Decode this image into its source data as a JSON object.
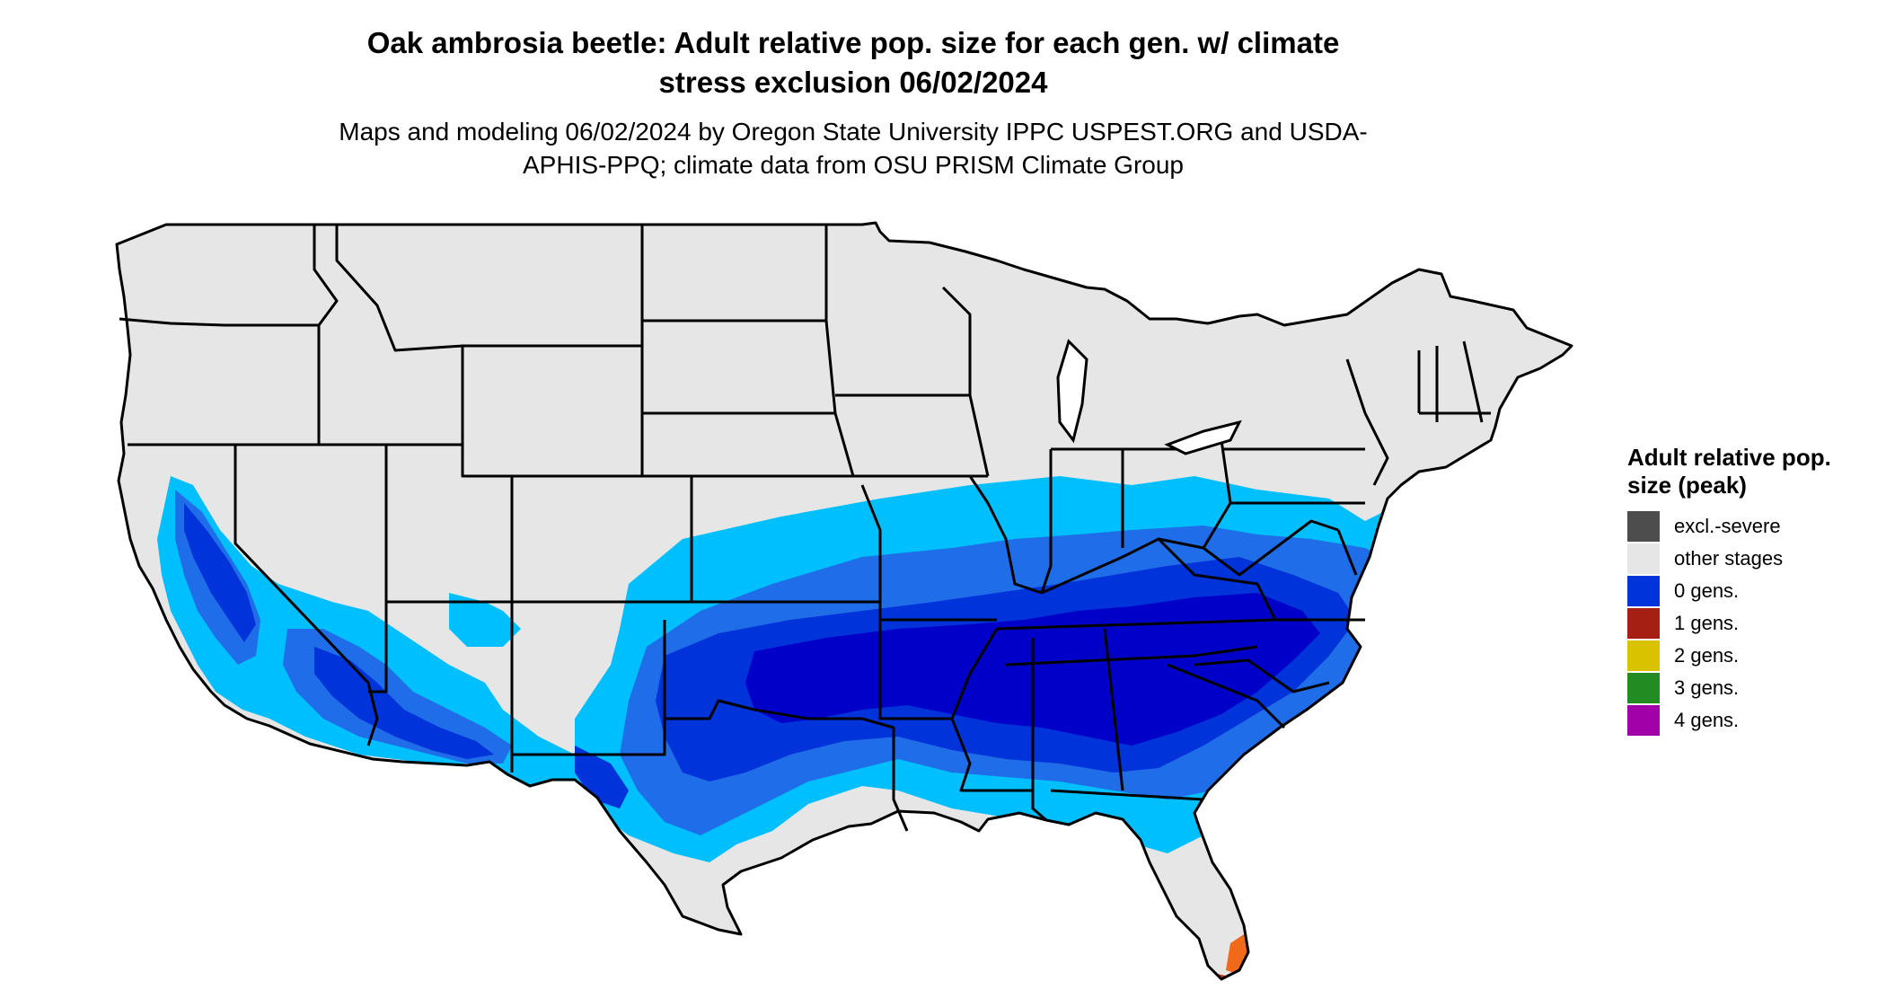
{
  "title": "Oak ambrosia beetle: Adult relative pop. size for each gen. w/ climate stress exclusion 06/02/2024",
  "subtitle": "Maps and modeling 06/02/2024 by Oregon State University IPPC USPEST.ORG and USDA-APHIS-PPQ; climate data from OSU PRISM Climate Group",
  "legend": {
    "title": "Adult relative pop. size (peak)",
    "items": [
      {
        "label": "excl.-severe",
        "color": "#4d4d4d"
      },
      {
        "label": "other stages",
        "color": "#e6e6e6"
      },
      {
        "label": "0 gens.",
        "color": "#0033d9"
      },
      {
        "label": "1 gens.",
        "color": "#a51f13"
      },
      {
        "label": "2 gens.",
        "color": "#d9c200"
      },
      {
        "label": "3 gens.",
        "color": "#228b22"
      },
      {
        "label": "4 gens.",
        "color": "#a100a8"
      }
    ]
  },
  "palette": {
    "land": "#e6e6e6",
    "border": "#000000",
    "low": "#00bfff",
    "mid": "#1f6de8",
    "high": "#0033d9",
    "peak": "#0000c8",
    "gen1": "#c8381c",
    "gen1_light": "#f06a1a"
  }
}
